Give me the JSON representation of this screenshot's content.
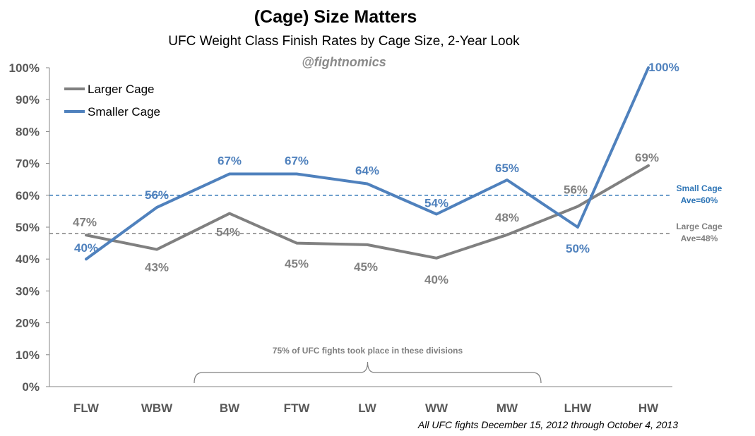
{
  "chart_data": {
    "type": "line",
    "title": "(Cage) Size Matters",
    "subtitle": "UFC Weight Class Finish Rates by Cage Size, 2-Year Look",
    "handle": "@fightnomics",
    "categories": [
      "FLW",
      "WBW",
      "BW",
      "FTW",
      "LW",
      "WW",
      "MW",
      "LHW",
      "HW"
    ],
    "ylim": [
      0,
      100
    ],
    "yticks": [
      "0%",
      "10%",
      "20%",
      "30%",
      "40%",
      "50%",
      "60%",
      "70%",
      "80%",
      "90%",
      "100%"
    ],
    "yticks_values": [
      0,
      10,
      20,
      30,
      40,
      50,
      60,
      70,
      80,
      90,
      100
    ],
    "series": [
      {
        "name": "Larger Cage",
        "color": "#808080",
        "values": [
          47.5,
          43,
          54.3,
          45,
          44.5,
          40.3,
          47.6,
          56.5,
          69.3
        ],
        "labels": [
          "47%",
          "43%",
          "54%",
          "45%",
          "45%",
          "40%",
          "48%",
          "56%",
          "69%"
        ]
      },
      {
        "name": "Smaller Cage",
        "color": "#4f81bd",
        "values": [
          40,
          56.2,
          66.7,
          66.7,
          63.6,
          54.1,
          64.8,
          50,
          100
        ],
        "labels": [
          "40%",
          "56%",
          "67%",
          "67%",
          "64%",
          "54%",
          "65%",
          "50%",
          "100%"
        ]
      }
    ],
    "reference_lines": [
      {
        "value": 60,
        "label_line1": "Small Cage",
        "label_line2": "Ave=60%",
        "color": "#2e75b6"
      },
      {
        "value": 48,
        "label_line1": "Large Cage",
        "label_line2": "Ave=48%",
        "color": "#808080"
      }
    ],
    "bracket": {
      "text": "75% of UFC fights took place in these divisions",
      "from_category": 2,
      "to_category": 6
    },
    "footnote": "All UFC fights December 15, 2012 through October 4, 2013",
    "legend_position": "top-left",
    "grid": false
  }
}
